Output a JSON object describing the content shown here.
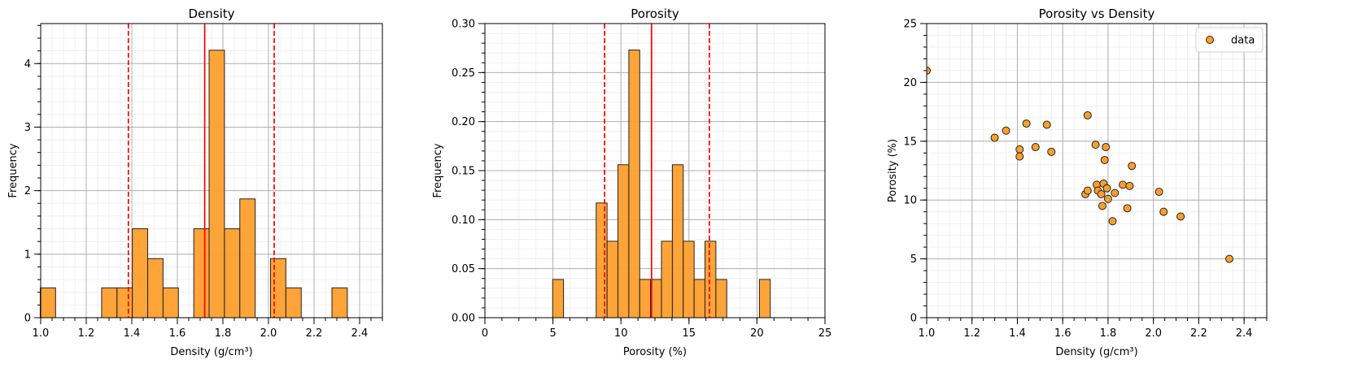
{
  "chart_data": [
    {
      "type": "histogram",
      "title": "Density",
      "xlabel": "Density (g/cm³)",
      "ylabel": "Frequency",
      "xlim": [
        1.0,
        2.5
      ],
      "ylim": [
        0,
        4.63
      ],
      "xticks": [
        1.0,
        1.2,
        1.4,
        1.6,
        1.8,
        2.0,
        2.2,
        2.4
      ],
      "xtick_labels": [
        "1.0",
        "1.2",
        "1.4",
        "1.6",
        "1.8",
        "2.0",
        "2.2",
        "2.4"
      ],
      "yticks": [
        0,
        1,
        2,
        3,
        4
      ],
      "ytick_labels": [
        "0",
        "1",
        "2",
        "3",
        "4"
      ],
      "bin_edges": [
        0.998,
        1.0654,
        1.1328,
        1.2002,
        1.2676,
        1.335,
        1.4024,
        1.4698,
        1.5372,
        1.6046,
        1.672,
        1.7394,
        1.8068,
        1.8742,
        1.9416,
        2.009,
        2.0764,
        2.1438,
        2.2112,
        2.2786,
        2.346
      ],
      "values": [
        0.47,
        0,
        0,
        0,
        0.47,
        0.47,
        1.4,
        0.93,
        0.47,
        0,
        1.4,
        4.21,
        1.4,
        1.87,
        0,
        0.93,
        0.47,
        0,
        0,
        0.47
      ],
      "vlines": [
        {
          "x": 1.72,
          "style": "solid",
          "color": "#ff0000"
        },
        {
          "x": 1.385,
          "style": "dashed",
          "color": "#ff0000"
        },
        {
          "x": 2.025,
          "style": "dashed",
          "color": "#ff0000"
        }
      ],
      "bar_color": "#ff9f2e",
      "grid": true
    },
    {
      "type": "histogram",
      "title": "Porosity",
      "xlabel": "Porosity (%)",
      "ylabel": "Frequency",
      "xlim": [
        0,
        25
      ],
      "ylim": [
        0,
        0.3
      ],
      "xticks": [
        0,
        5,
        10,
        15,
        20,
        25
      ],
      "xtick_labels": [
        "0",
        "5",
        "10",
        "15",
        "20",
        "25"
      ],
      "yticks": [
        0,
        0.05,
        0.1,
        0.15,
        0.2,
        0.25,
        0.3
      ],
      "ytick_labels": [
        "0.00",
        "0.05",
        "0.10",
        "0.15",
        "0.20",
        "0.25",
        "0.30"
      ],
      "bin_edges": [
        4.98,
        5.78,
        6.58,
        7.38,
        8.18,
        8.98,
        9.78,
        10.58,
        11.38,
        12.18,
        12.98,
        13.78,
        14.58,
        15.38,
        16.18,
        16.98,
        17.78,
        18.58,
        19.38,
        20.18,
        20.98
      ],
      "values": [
        0.039,
        0,
        0,
        0,
        0.117,
        0.078,
        0.156,
        0.273,
        0.039,
        0.039,
        0.078,
        0.156,
        0.078,
        0.039,
        0.078,
        0.039,
        0,
        0,
        0,
        0.039
      ],
      "vlines": [
        {
          "x": 12.25,
          "style": "solid",
          "color": "#ff0000"
        },
        {
          "x": 8.8,
          "style": "dashed",
          "color": "#ff0000"
        },
        {
          "x": 16.5,
          "style": "dashed",
          "color": "#ff0000"
        }
      ],
      "bar_color": "#ff9f2e",
      "grid": true
    },
    {
      "type": "scatter",
      "title": "Porosity vs Density",
      "xlabel": "Density (g/cm³)",
      "ylabel": "Porosity (%)",
      "xlim": [
        1.0,
        2.5
      ],
      "ylim": [
        0,
        25
      ],
      "xticks": [
        1.0,
        1.2,
        1.4,
        1.6,
        1.8,
        2.0,
        2.2,
        2.4
      ],
      "xtick_labels": [
        "1.0",
        "1.2",
        "1.4",
        "1.6",
        "1.8",
        "2.0",
        "2.2",
        "2.4"
      ],
      "yticks": [
        0,
        5,
        10,
        15,
        20,
        25
      ],
      "ytick_labels": [
        "0",
        "5",
        "10",
        "15",
        "20",
        "25"
      ],
      "legend": {
        "label": "data",
        "placement": "top-right"
      },
      "marker_color": "#ff9f2e",
      "points": [
        {
          "x": 1.0,
          "y": 21.0
        },
        {
          "x": 1.3,
          "y": 15.3
        },
        {
          "x": 1.35,
          "y": 15.9
        },
        {
          "x": 1.41,
          "y": 14.3
        },
        {
          "x": 1.41,
          "y": 13.7
        },
        {
          "x": 1.44,
          "y": 16.5
        },
        {
          "x": 1.48,
          "y": 14.5
        },
        {
          "x": 1.53,
          "y": 16.4
        },
        {
          "x": 1.55,
          "y": 14.1
        },
        {
          "x": 1.7,
          "y": 10.5
        },
        {
          "x": 1.71,
          "y": 17.2
        },
        {
          "x": 1.71,
          "y": 10.8
        },
        {
          "x": 1.745,
          "y": 14.7
        },
        {
          "x": 1.75,
          "y": 11.3
        },
        {
          "x": 1.755,
          "y": 10.8
        },
        {
          "x": 1.77,
          "y": 10.5
        },
        {
          "x": 1.775,
          "y": 9.5
        },
        {
          "x": 1.78,
          "y": 11.4
        },
        {
          "x": 1.785,
          "y": 13.4
        },
        {
          "x": 1.79,
          "y": 14.5
        },
        {
          "x": 1.795,
          "y": 11.0
        },
        {
          "x": 1.8,
          "y": 10.1
        },
        {
          "x": 1.82,
          "y": 8.2
        },
        {
          "x": 1.83,
          "y": 10.6
        },
        {
          "x": 1.865,
          "y": 11.3
        },
        {
          "x": 1.885,
          "y": 9.3
        },
        {
          "x": 1.895,
          "y": 11.2
        },
        {
          "x": 1.905,
          "y": 12.9
        },
        {
          "x": 2.025,
          "y": 10.7
        },
        {
          "x": 2.045,
          "y": 9.0
        },
        {
          "x": 2.12,
          "y": 8.6
        },
        {
          "x": 2.335,
          "y": 5.0
        }
      ],
      "grid": true
    }
  ]
}
